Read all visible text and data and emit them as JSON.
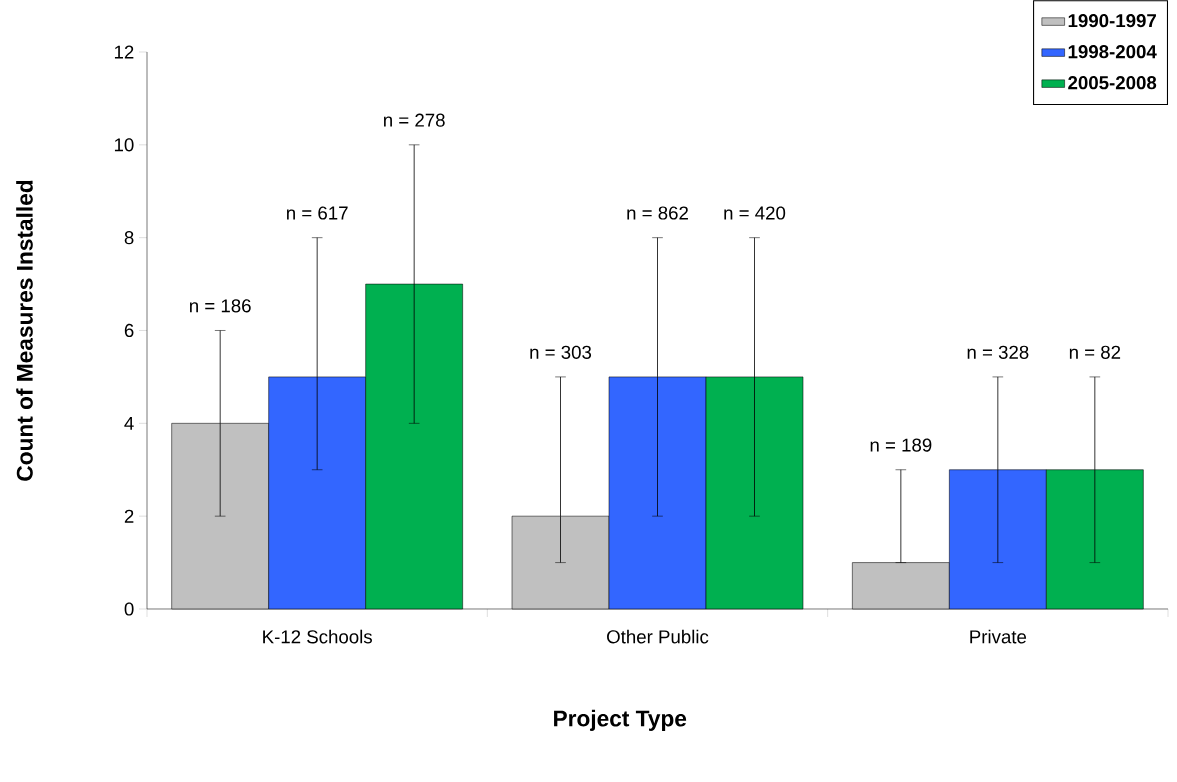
{
  "chart_data": {
    "type": "bar",
    "xlabel": "Project Type",
    "ylabel": "Count of Measures Installed",
    "categories": [
      "K-12 Schools",
      "Other Public",
      "Private"
    ],
    "series": [
      {
        "name": "1990-1997",
        "color": "#c0c0c0",
        "values": [
          4,
          2,
          1
        ],
        "errors": [
          [
            2,
            6
          ],
          [
            1,
            5
          ],
          [
            1,
            3
          ]
        ]
      },
      {
        "name": "1998-2004",
        "color": "#3366ff",
        "values": [
          5,
          5,
          3
        ],
        "errors": [
          [
            3,
            8
          ],
          [
            2,
            8
          ],
          [
            1,
            5
          ]
        ]
      },
      {
        "name": "2005-2008",
        "color": "#00b050",
        "values": [
          7,
          5,
          3
        ],
        "errors": [
          [
            4,
            10
          ],
          [
            2,
            8
          ],
          [
            1,
            5
          ]
        ]
      }
    ],
    "annotations": [
      "n = 186",
      "n = 617",
      "n = 278",
      "n = 303",
      "n = 862",
      "n = 420",
      "n = 189",
      "n = 328",
      "n = 82"
    ],
    "ylim": [
      0,
      12
    ],
    "yticks": [
      0,
      2,
      4,
      6,
      8,
      10,
      12
    ],
    "legend": "top right"
  }
}
